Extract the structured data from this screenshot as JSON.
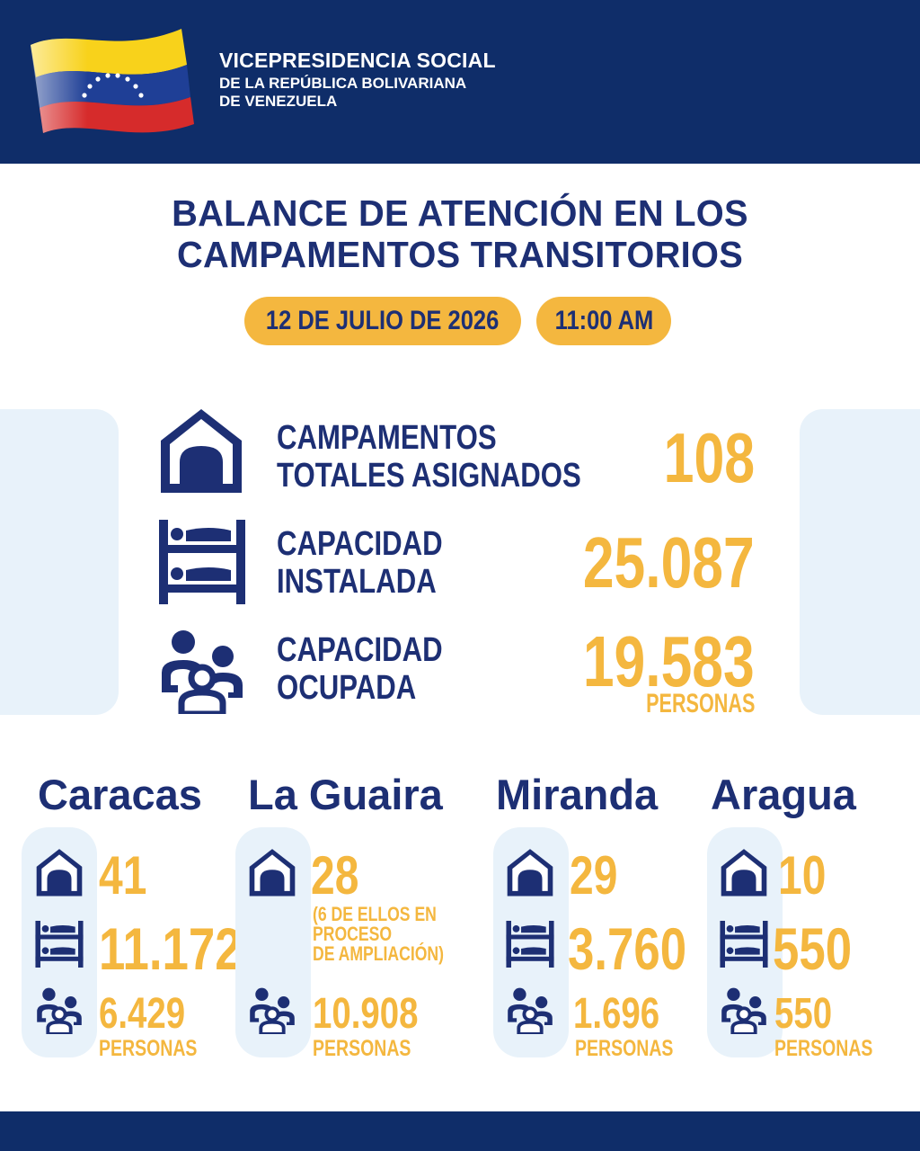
{
  "header": {
    "org_line1": "VICEPRESIDENCIA SOCIAL",
    "org_line2": "DE LA REPÚBLICA BOLIVARIANA",
    "org_line3": "DE VENEZUELA",
    "flag_colors": [
      "#f8d21b",
      "#1f3f96",
      "#d62b2b"
    ]
  },
  "title": {
    "line1": "BALANCE DE ATENCIÓN EN LOS",
    "line2": "CAMPAMENTOS TRANSITORIOS"
  },
  "date": "12 DE JULIO DE 2026",
  "time": "11:00 AM",
  "stats": [
    {
      "icon": "tent-icon",
      "label_line1": "CAMPAMENTOS",
      "label_line2": "TOTALES ASIGNADOS",
      "value": "108"
    },
    {
      "icon": "bunk-bed-icon",
      "label_line1": "CAPACIDAD",
      "label_line2": "INSTALADA",
      "value": "25.087"
    },
    {
      "icon": "people-group-icon",
      "label_line1": "CAPACIDAD",
      "label_line2": "OCUPADA",
      "value": "19.583",
      "unit": "PERSONAS"
    }
  ],
  "regions": [
    {
      "name": "Caracas",
      "camps": "41",
      "capacity": "11.172",
      "people": "6.429",
      "people_unit": "PERSONAS"
    },
    {
      "name": "La Guaira",
      "camps": "28",
      "note_line1": "(6 DE ELLOS EN",
      "note_line2": "PROCESO",
      "note_line3": "DE AMPLIACIÓN)",
      "people": "10.908",
      "people_unit": "PERSONAS"
    },
    {
      "name": "Miranda",
      "camps": "29",
      "capacity": "3.760",
      "people": "1.696",
      "people_unit": "PERSONAS"
    },
    {
      "name": "Aragua",
      "camps": "10",
      "capacity": "550",
      "people": "550",
      "people_unit": "PERSONAS"
    }
  ],
  "colors": {
    "navy": "#0f2d69",
    "text_navy": "#1d2f74",
    "accent": "#f4b73f",
    "panel": "#e8f2fa"
  }
}
